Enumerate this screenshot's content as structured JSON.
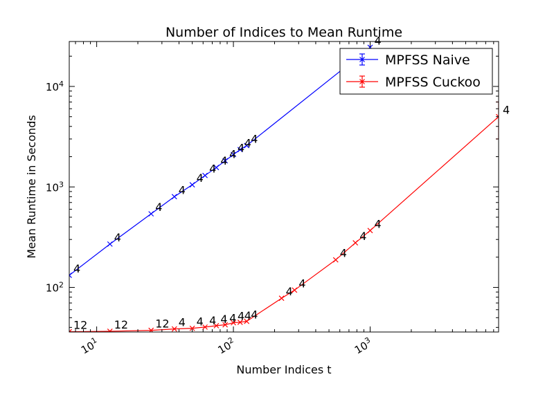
{
  "chart_data": {
    "type": "line",
    "title": "Number of Indices to Mean Runtime",
    "xlabel": "Number Indices t",
    "ylabel": "Mean Runtime in Seconds",
    "xscale": "log",
    "yscale": "log",
    "xlim": [
      6.3,
      8700
    ],
    "ylim": [
      36,
      28000
    ],
    "x_tick_labels": [
      {
        "value": 10,
        "base": "10",
        "exp": "1"
      },
      {
        "value": 100,
        "base": "10",
        "exp": "2"
      },
      {
        "value": 1000,
        "base": "10",
        "exp": "3"
      }
    ],
    "y_tick_labels": [
      {
        "value": 100,
        "base": "10",
        "exp": "2"
      },
      {
        "value": 1000,
        "base": "10",
        "exp": "3"
      },
      {
        "value": 10000,
        "base": "10",
        "exp": "4"
      }
    ],
    "grid": false,
    "legend_position": "upper right",
    "series": [
      {
        "name": "MPFSS Naive",
        "color": "#0000ff",
        "marker": "x",
        "points": [
          {
            "x": 6.3,
            "y": 132,
            "label": "4"
          },
          {
            "x": 12.5,
            "y": 270,
            "label": "4"
          },
          {
            "x": 25,
            "y": 540,
            "label": "4"
          },
          {
            "x": 37,
            "y": 800,
            "label": "4"
          },
          {
            "x": 50,
            "y": 1050,
            "label": "4"
          },
          {
            "x": 62,
            "y": 1300,
            "label": "4"
          },
          {
            "x": 75,
            "y": 1560,
            "label": "4"
          },
          {
            "x": 87,
            "y": 1820,
            "label": "4"
          },
          {
            "x": 100,
            "y": 2100,
            "label": "4"
          },
          {
            "x": 112,
            "y": 2350,
            "label": "4"
          },
          {
            "x": 125,
            "y": 2580,
            "label": "4"
          },
          {
            "x": 1000,
            "y": 24500,
            "label": "4"
          }
        ]
      },
      {
        "name": "MPFSS Cuckoo",
        "color": "#ff0000",
        "marker": "x",
        "points": [
          {
            "x": 6.3,
            "y": 36.2,
            "label": "12"
          },
          {
            "x": 12.5,
            "y": 36.6,
            "label": "12"
          },
          {
            "x": 25,
            "y": 37.4,
            "label": "12"
          },
          {
            "x": 37,
            "y": 38.6,
            "label": "4"
          },
          {
            "x": 50,
            "y": 39.2,
            "label": "4"
          },
          {
            "x": 62,
            "y": 40.3,
            "label": "4"
          },
          {
            "x": 75,
            "y": 41.6,
            "label": "4"
          },
          {
            "x": 87,
            "y": 42.5,
            "label": "4"
          },
          {
            "x": 100,
            "y": 44.5,
            "label": "4"
          },
          {
            "x": 112,
            "y": 45.0,
            "label": "4"
          },
          {
            "x": 125,
            "y": 46.0,
            "label": "4"
          },
          {
            "x": 225,
            "y": 78,
            "label": "4"
          },
          {
            "x": 280,
            "y": 94,
            "label": "4"
          },
          {
            "x": 560,
            "y": 188,
            "label": "4"
          },
          {
            "x": 780,
            "y": 278,
            "label": "4"
          },
          {
            "x": 1000,
            "y": 368,
            "label": "4"
          },
          {
            "x": 8700,
            "y": 5000,
            "label": "4",
            "err_low": 3000,
            "err_high": 7000
          }
        ]
      }
    ]
  }
}
